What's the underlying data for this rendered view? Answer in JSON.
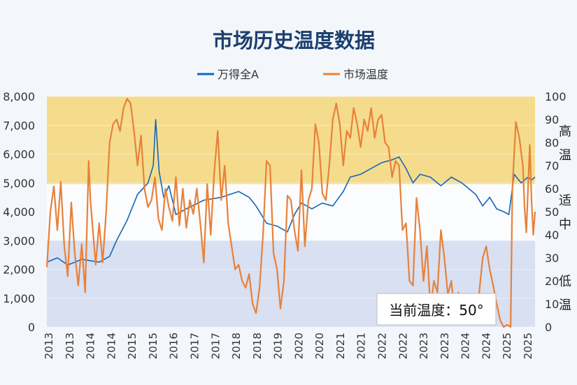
{
  "chart_data": {
    "type": "line",
    "title": "市场历史温度数据",
    "categories": [
      "2013",
      "2013",
      "2014",
      "2014",
      "2015",
      "2015",
      "2016",
      "2017",
      "2017",
      "2018",
      "2018",
      "2019",
      "2020",
      "2020",
      "2021",
      "2021",
      "2022",
      "2022",
      "2023",
      "2023",
      "2024",
      "2024",
      "2025",
      "2025"
    ],
    "y_left_ticks": [
      "8,000",
      "7,000",
      "6,000",
      "5,000",
      "4,000",
      "3,000",
      "2,000",
      "1,000",
      "0"
    ],
    "y_right_ticks": [
      "100",
      "90",
      "80",
      "70",
      "60",
      "50",
      "40",
      "30",
      "20",
      "10",
      "0"
    ],
    "y_left_range": [
      0,
      8000
    ],
    "y_right_range": [
      0,
      100
    ],
    "bands": [
      {
        "from": 62,
        "to": 100,
        "label": "高温",
        "color": "#f5dc8d"
      },
      {
        "from": 0,
        "to": 37.5,
        "label": "低温",
        "color": "#d8e0f1"
      }
    ],
    "band_labels": [
      {
        "name": "high-zone-label",
        "text": "高温",
        "y": 80
      },
      {
        "name": "mid-zone-label",
        "text": "适中",
        "y": 50
      },
      {
        "name": "low-zone-label",
        "text": "低温",
        "y": 15
      }
    ],
    "series": [
      {
        "name": "万得全A",
        "axis": "left",
        "color": "#1565b8",
        "points": [
          [
            2013.0,
            2250
          ],
          [
            2013.3,
            2400
          ],
          [
            2013.6,
            2150
          ],
          [
            2014.0,
            2350
          ],
          [
            2014.5,
            2250
          ],
          [
            2014.8,
            2450
          ],
          [
            2015.0,
            3000
          ],
          [
            2015.3,
            3700
          ],
          [
            2015.6,
            4600
          ],
          [
            2015.9,
            5000
          ],
          [
            2016.05,
            5600
          ],
          [
            2016.12,
            7200
          ],
          [
            2016.22,
            5400
          ],
          [
            2016.35,
            4500
          ],
          [
            2016.5,
            4900
          ],
          [
            2016.7,
            3900
          ],
          [
            2017.0,
            4100
          ],
          [
            2017.5,
            4400
          ],
          [
            2018.0,
            4500
          ],
          [
            2018.5,
            4700
          ],
          [
            2018.8,
            4500
          ],
          [
            2019.0,
            4200
          ],
          [
            2019.3,
            3600
          ],
          [
            2019.6,
            3500
          ],
          [
            2019.9,
            3300
          ],
          [
            2020.1,
            3900
          ],
          [
            2020.3,
            4300
          ],
          [
            2020.6,
            4100
          ],
          [
            2020.9,
            4300
          ],
          [
            2021.2,
            4200
          ],
          [
            2021.5,
            4700
          ],
          [
            2021.7,
            5200
          ],
          [
            2022.0,
            5300
          ],
          [
            2022.3,
            5500
          ],
          [
            2022.6,
            5700
          ],
          [
            2022.9,
            5800
          ],
          [
            2023.1,
            5900
          ],
          [
            2023.3,
            5500
          ],
          [
            2023.5,
            5000
          ],
          [
            2023.7,
            5300
          ],
          [
            2024.0,
            5200
          ],
          [
            2024.3,
            4900
          ],
          [
            2024.6,
            5200
          ],
          [
            2024.9,
            5000
          ],
          [
            2025.1,
            4800
          ],
          [
            2025.3,
            4600
          ],
          [
            2025.5,
            4200
          ],
          [
            2025.7,
            4500
          ],
          [
            2025.9,
            4100
          ],
          [
            2026.1,
            4000
          ],
          [
            2026.25,
            3900
          ],
          [
            2026.4,
            5300
          ],
          [
            2026.6,
            5000
          ],
          [
            2026.8,
            5200
          ],
          [
            2026.9,
            5100
          ],
          [
            2027.0,
            5200
          ]
        ]
      },
      {
        "name": "市场温度",
        "axis": "right",
        "color": "#e8813a",
        "points": [
          [
            2013.0,
            26
          ],
          [
            2013.1,
            50
          ],
          [
            2013.2,
            61
          ],
          [
            2013.3,
            42
          ],
          [
            2013.4,
            63
          ],
          [
            2013.5,
            35
          ],
          [
            2013.6,
            22
          ],
          [
            2013.7,
            54
          ],
          [
            2013.8,
            32
          ],
          [
            2013.9,
            18
          ],
          [
            2014.0,
            36
          ],
          [
            2014.1,
            15
          ],
          [
            2014.2,
            72
          ],
          [
            2014.25,
            55
          ],
          [
            2014.4,
            27
          ],
          [
            2014.5,
            45
          ],
          [
            2014.6,
            28
          ],
          [
            2014.7,
            50
          ],
          [
            2014.8,
            80
          ],
          [
            2014.9,
            88
          ],
          [
            2015.0,
            90
          ],
          [
            2015.1,
            85
          ],
          [
            2015.2,
            95
          ],
          [
            2015.3,
            99
          ],
          [
            2015.4,
            97
          ],
          [
            2015.5,
            85
          ],
          [
            2015.6,
            70
          ],
          [
            2015.7,
            83
          ],
          [
            2015.8,
            60
          ],
          [
            2015.9,
            52
          ],
          [
            2016.0,
            55
          ],
          [
            2016.1,
            65
          ],
          [
            2016.2,
            47
          ],
          [
            2016.3,
            42
          ],
          [
            2016.4,
            60
          ],
          [
            2016.5,
            52
          ],
          [
            2016.6,
            46
          ],
          [
            2016.7,
            65
          ],
          [
            2016.8,
            44
          ],
          [
            2016.9,
            60
          ],
          [
            2017.0,
            43
          ],
          [
            2017.1,
            55
          ],
          [
            2017.2,
            49
          ],
          [
            2017.3,
            60
          ],
          [
            2017.4,
            45
          ],
          [
            2017.5,
            28
          ],
          [
            2017.6,
            62
          ],
          [
            2017.7,
            40
          ],
          [
            2017.8,
            67
          ],
          [
            2017.9,
            85
          ],
          [
            2018.0,
            55
          ],
          [
            2018.1,
            70
          ],
          [
            2018.2,
            45
          ],
          [
            2018.3,
            35
          ],
          [
            2018.4,
            25
          ],
          [
            2018.5,
            27
          ],
          [
            2018.6,
            20
          ],
          [
            2018.7,
            17
          ],
          [
            2018.8,
            23
          ],
          [
            2018.9,
            10
          ],
          [
            2019.0,
            6
          ],
          [
            2019.1,
            17
          ],
          [
            2019.2,
            40
          ],
          [
            2019.3,
            72
          ],
          [
            2019.4,
            70
          ],
          [
            2019.5,
            32
          ],
          [
            2019.6,
            25
          ],
          [
            2019.7,
            8
          ],
          [
            2019.8,
            20
          ],
          [
            2019.9,
            57
          ],
          [
            2020.0,
            55
          ],
          [
            2020.1,
            42
          ],
          [
            2020.2,
            33
          ],
          [
            2020.3,
            68
          ],
          [
            2020.4,
            35
          ],
          [
            2020.5,
            55
          ],
          [
            2020.6,
            60
          ],
          [
            2020.7,
            88
          ],
          [
            2020.8,
            80
          ],
          [
            2020.9,
            58
          ],
          [
            2021.0,
            55
          ],
          [
            2021.1,
            70
          ],
          [
            2021.2,
            90
          ],
          [
            2021.3,
            97
          ],
          [
            2021.4,
            88
          ],
          [
            2021.5,
            70
          ],
          [
            2021.6,
            85
          ],
          [
            2021.7,
            82
          ],
          [
            2021.8,
            95
          ],
          [
            2021.9,
            88
          ],
          [
            2022.0,
            78
          ],
          [
            2022.1,
            90
          ],
          [
            2022.2,
            85
          ],
          [
            2022.3,
            95
          ],
          [
            2022.4,
            82
          ],
          [
            2022.5,
            90
          ],
          [
            2022.6,
            92
          ],
          [
            2022.7,
            80
          ],
          [
            2022.8,
            78
          ],
          [
            2022.9,
            65
          ],
          [
            2023.0,
            72
          ],
          [
            2023.1,
            70
          ],
          [
            2023.2,
            42
          ],
          [
            2023.3,
            45
          ],
          [
            2023.4,
            20
          ],
          [
            2023.5,
            18
          ],
          [
            2023.6,
            56
          ],
          [
            2023.7,
            42
          ],
          [
            2023.8,
            20
          ],
          [
            2023.9,
            35
          ],
          [
            2024.0,
            8
          ],
          [
            2024.1,
            20
          ],
          [
            2024.2,
            15
          ],
          [
            2024.3,
            42
          ],
          [
            2024.4,
            30
          ],
          [
            2024.5,
            14
          ],
          [
            2024.6,
            20
          ],
          [
            2024.7,
            5
          ],
          [
            2024.8,
            15
          ],
          [
            2024.9,
            10
          ],
          [
            2025.0,
            3
          ],
          [
            2025.1,
            8
          ],
          [
            2025.2,
            2
          ],
          [
            2025.3,
            3
          ],
          [
            2025.4,
            15
          ],
          [
            2025.5,
            30
          ],
          [
            2025.6,
            35
          ],
          [
            2025.7,
            25
          ],
          [
            2025.8,
            18
          ],
          [
            2025.9,
            10
          ],
          [
            2026.0,
            3
          ],
          [
            2026.1,
            0
          ],
          [
            2026.2,
            1
          ],
          [
            2026.3,
            0
          ],
          [
            2026.35,
            60
          ],
          [
            2026.45,
            89
          ],
          [
            2026.55,
            82
          ],
          [
            2026.65,
            70
          ],
          [
            2026.7,
            52
          ],
          [
            2026.75,
            41
          ],
          [
            2026.8,
            60
          ],
          [
            2026.85,
            79
          ],
          [
            2026.9,
            55
          ],
          [
            2026.95,
            40
          ],
          [
            2027.0,
            50
          ]
        ]
      }
    ],
    "annotation": "当前温度：50°"
  },
  "colors": {
    "background": "#f3f7fc",
    "title": "#1c3f6e",
    "axis_text": "#444444"
  }
}
